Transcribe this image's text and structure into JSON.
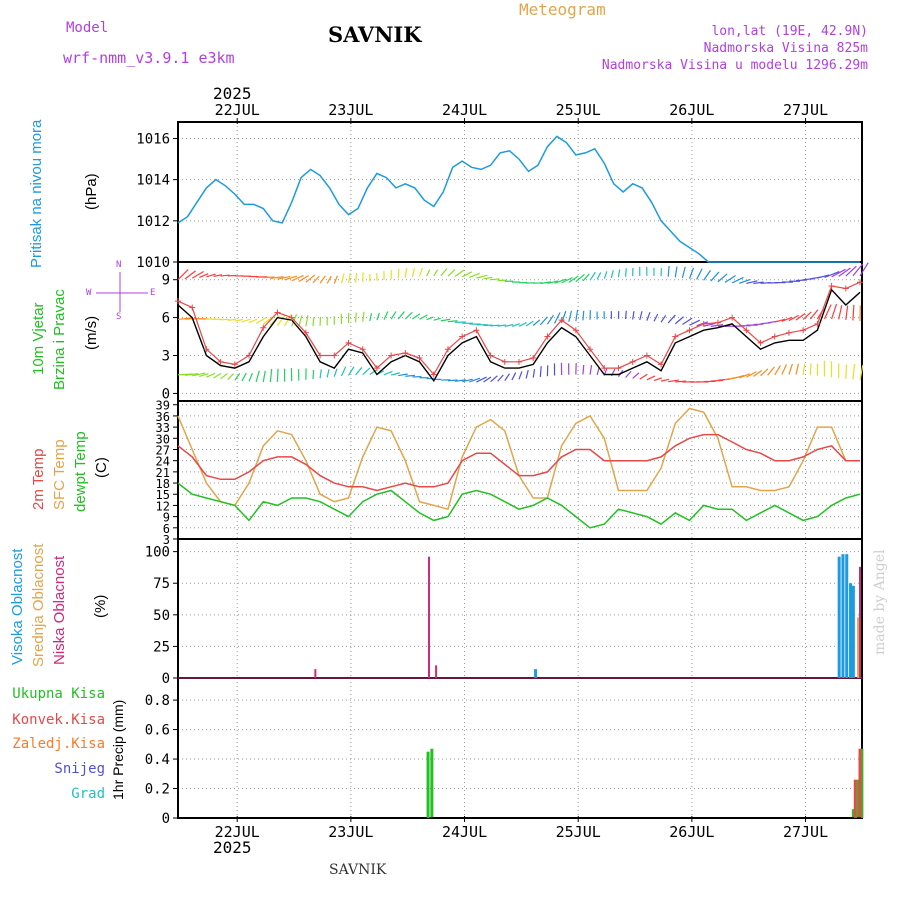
{
  "header": {
    "model_label": "Model",
    "model_name": "wrf-nmm_v3.9.1  e3km",
    "station": "SAVNIK",
    "product": "Meteogram",
    "location": "lon,lat (19E, 42.9N)",
    "elevation": "Nadmorska Visina 825m",
    "model_elevation": "Nadmorska Visina u modelu 1296.29m",
    "year_top": "2025",
    "year_bottom": "2025",
    "footer_station": "SAVNIK",
    "watermark": "made by Angel"
  },
  "colors": {
    "pressure": "#1e9be0",
    "temp": "#e84848",
    "sfc": "#e3a54a",
    "dew": "#22c022",
    "wind_black": "#000000",
    "high_cloud": "#1e9be0",
    "mid_cloud": "#e3a54a",
    "low_cloud": "#d0287a",
    "rain_total": "#22c022",
    "rain_conv": "#e84848",
    "rain_strat": "#ff7a2a",
    "snow": "#5050e0",
    "hail": "#22c0c0",
    "purple": "#b040e0"
  },
  "chart_data": [
    {
      "type": "line",
      "name": "pressure",
      "title": "Pritisak na nivou mora",
      "ylabel": "(hPa)",
      "ylim": [
        1010,
        1016.8
      ],
      "yticks": [
        1010,
        1012,
        1014,
        1016
      ],
      "x_days": [
        "22JUL",
        "23JUL",
        "24JUL",
        "25JUL",
        "26JUL",
        "27JUL"
      ],
      "x_range_hours": [
        0,
        144
      ],
      "series": [
        {
          "name": "Pressure MSL",
          "x": [
            0,
            2,
            4,
            6,
            8,
            10,
            12,
            14,
            16,
            18,
            20,
            22,
            24,
            26,
            28,
            30,
            32,
            34,
            36,
            38,
            40,
            42,
            44,
            46,
            48,
            50,
            52,
            54,
            56,
            58,
            60,
            62,
            64,
            66,
            68,
            70,
            72,
            74,
            76,
            78,
            80,
            82,
            84,
            86,
            88,
            90,
            92,
            94,
            96,
            98,
            100,
            102,
            104,
            106,
            108,
            110,
            112,
            114,
            116,
            118,
            120,
            122,
            124,
            126,
            128,
            130,
            132,
            134,
            136,
            138,
            140,
            142,
            144
          ],
          "values": [
            1011.9,
            1012.2,
            1012.9,
            1013.6,
            1014.0,
            1013.7,
            1013.3,
            1012.8,
            1012.8,
            1012.6,
            1012.0,
            1011.9,
            1012.9,
            1014.1,
            1014.5,
            1014.2,
            1013.6,
            1012.8,
            1012.3,
            1012.6,
            1013.6,
            1014.3,
            1014.1,
            1013.6,
            1013.8,
            1013.6,
            1013.0,
            1012.7,
            1013.4,
            1014.6,
            1014.9,
            1014.6,
            1014.5,
            1014.7,
            1015.3,
            1015.4,
            1015.0,
            1014.4,
            1014.7,
            1015.6,
            1016.1,
            1015.8,
            1015.2,
            1015.3,
            1015.5,
            1014.8,
            1013.8,
            1013.4,
            1013.8,
            1013.6,
            1012.9,
            1012.0,
            1011.5,
            1011.0,
            1010.7,
            1010.4,
            1010.0,
            1010.0,
            1010.0,
            1010.0,
            1010.0,
            1010.0,
            1010.0,
            1010.0,
            1010.0,
            1010.0,
            1010.0,
            1010.0,
            1010.0,
            1010.0,
            1010.0,
            1010.0,
            1010.0
          ]
        }
      ]
    },
    {
      "type": "line",
      "name": "wind",
      "title": "10m Vjetar",
      "title2": "Brzina i Pravac",
      "ylabel": "(m/s)",
      "ylim": [
        -0.6,
        10.4
      ],
      "yticks": [
        0,
        3,
        6,
        9
      ],
      "compass": {
        "n": "N",
        "s": "S",
        "e": "E",
        "w": "W"
      },
      "series": [
        {
          "name": "Wind speed",
          "x": [
            0,
            3,
            6,
            9,
            12,
            15,
            18,
            21,
            24,
            27,
            30,
            33,
            36,
            39,
            42,
            45,
            48,
            51,
            54,
            57,
            60,
            63,
            66,
            69,
            72,
            75,
            78,
            81,
            84,
            87,
            90,
            93,
            96,
            99,
            102,
            105,
            108,
            111,
            114,
            117,
            120,
            123,
            126,
            129,
            132,
            135,
            138,
            141,
            144
          ],
          "values": [
            7.0,
            6.0,
            3.0,
            2.2,
            2.0,
            2.5,
            4.5,
            6.0,
            5.8,
            4.5,
            2.5,
            2.0,
            3.5,
            3.2,
            1.5,
            2.5,
            3.0,
            2.5,
            1.0,
            3.0,
            4.0,
            4.5,
            2.5,
            2.0,
            2.0,
            2.3,
            4.0,
            5.2,
            4.5,
            3.0,
            1.5,
            1.5,
            2.0,
            2.5,
            1.8,
            4.0,
            4.5,
            5.0,
            5.2,
            5.5,
            4.5,
            3.5,
            4.0,
            4.2,
            4.2,
            5.0,
            8.2,
            7.0,
            8.0
          ]
        },
        {
          "name": "Wind gust",
          "x": [
            0,
            3,
            6,
            9,
            12,
            15,
            18,
            21,
            24,
            27,
            30,
            33,
            36,
            39,
            42,
            45,
            48,
            51,
            54,
            57,
            60,
            63,
            66,
            69,
            72,
            75,
            78,
            81,
            84,
            87,
            90,
            93,
            96,
            99,
            102,
            105,
            108,
            111,
            114,
            117,
            120,
            123,
            126,
            129,
            132,
            135,
            138,
            141,
            144
          ],
          "values": [
            7.3,
            6.8,
            3.5,
            2.5,
            2.3,
            3.0,
            5.2,
            6.4,
            6.0,
            4.8,
            3.0,
            3.0,
            4.0,
            3.5,
            2.0,
            3.0,
            3.2,
            2.8,
            1.5,
            3.5,
            4.5,
            5.0,
            3.0,
            2.5,
            2.5,
            2.8,
            4.5,
            5.8,
            5.0,
            3.5,
            2.0,
            2.0,
            2.5,
            3.0,
            2.3,
            4.5,
            5.0,
            5.5,
            5.6,
            6.0,
            5.0,
            4.0,
            4.5,
            4.8,
            5.0,
            5.5,
            8.5,
            8.3,
            8.8
          ]
        }
      ]
    },
    {
      "type": "line",
      "name": "temperature",
      "title": "2m Temp",
      "title2": "SFC Temp",
      "title3": "dewpt Temp",
      "ylabel": "(C)",
      "ylim": [
        3,
        40
      ],
      "yticks": [
        3,
        6,
        9,
        12,
        15,
        18,
        21,
        24,
        27,
        30,
        33,
        36,
        39
      ],
      "series": [
        {
          "name": "2m Temp",
          "x": [
            0,
            3,
            6,
            9,
            12,
            15,
            18,
            21,
            24,
            27,
            30,
            33,
            36,
            39,
            42,
            45,
            48,
            51,
            54,
            57,
            60,
            63,
            66,
            69,
            72,
            75,
            78,
            81,
            84,
            87,
            90,
            93,
            96,
            99,
            102,
            105,
            108,
            111,
            114,
            117,
            120,
            123,
            126,
            129,
            132,
            135,
            138,
            141,
            144
          ],
          "values": [
            28,
            25,
            20,
            19,
            19,
            21,
            24,
            25,
            25,
            23,
            20,
            18,
            17,
            17,
            16,
            17,
            18,
            17,
            17,
            18,
            24,
            26,
            26,
            23,
            20,
            20,
            21,
            25,
            27,
            27,
            24,
            24,
            24,
            24,
            25,
            28,
            30,
            31,
            31,
            29,
            27,
            26,
            24,
            24,
            25,
            27,
            28,
            24,
            24
          ]
        },
        {
          "name": "SFC Temp",
          "x": [
            0,
            3,
            6,
            9,
            12,
            15,
            18,
            21,
            24,
            27,
            30,
            33,
            36,
            39,
            42,
            45,
            48,
            51,
            54,
            57,
            60,
            63,
            66,
            69,
            72,
            75,
            78,
            81,
            84,
            87,
            90,
            93,
            96,
            99,
            102,
            105,
            108,
            111,
            114,
            117,
            120,
            123,
            126,
            129,
            132,
            135,
            138,
            141,
            144
          ],
          "values": [
            36,
            27,
            18,
            13,
            12,
            18,
            28,
            32,
            31,
            24,
            15,
            13,
            14,
            25,
            33,
            32,
            24,
            13,
            12,
            11,
            25,
            33,
            35,
            32,
            20,
            14,
            14,
            28,
            34,
            36,
            30,
            16,
            16,
            16,
            22,
            34,
            38,
            37,
            30,
            17,
            17,
            16,
            16,
            17,
            24,
            33,
            33,
            24,
            24
          ]
        },
        {
          "name": "Dewpoint",
          "x": [
            0,
            3,
            6,
            9,
            12,
            15,
            18,
            21,
            24,
            27,
            30,
            33,
            36,
            39,
            42,
            45,
            48,
            51,
            54,
            57,
            60,
            63,
            66,
            69,
            72,
            75,
            78,
            81,
            84,
            87,
            90,
            93,
            96,
            99,
            102,
            105,
            108,
            111,
            114,
            117,
            120,
            123,
            126,
            129,
            132,
            135,
            138,
            141,
            144
          ],
          "values": [
            18,
            15,
            14,
            13,
            12,
            8,
            13,
            12,
            14,
            14,
            13,
            11,
            9,
            13,
            15,
            16,
            13,
            10,
            8,
            9,
            15,
            16,
            15,
            13,
            11,
            12,
            14,
            12,
            9,
            6,
            7,
            11,
            10,
            9,
            7,
            10,
            8,
            12,
            11,
            11,
            8,
            10,
            12,
            10,
            8,
            9,
            12,
            14,
            15
          ]
        }
      ]
    },
    {
      "type": "bar",
      "name": "clouds",
      "title": "Visoka Oblacnost",
      "title2": "Srednja Oblacnost",
      "title3": "Niska Oblacnost",
      "ylabel": "(%)",
      "ylim": [
        0,
        110
      ],
      "yticks": [
        0,
        25,
        50,
        75,
        100
      ],
      "series": [
        {
          "name": "Low cloud",
          "x": [
            29,
            53,
            54.5,
            144
          ],
          "values": [
            7,
            96,
            10,
            88
          ]
        },
        {
          "name": "Mid cloud",
          "x": [
            143.6
          ],
          "values": [
            48
          ]
        },
        {
          "name": "High cloud",
          "x": [
            75.5,
            139.6,
            140.4,
            141.2,
            142.0,
            142.6
          ],
          "values": [
            7,
            96,
            98,
            98,
            75,
            73
          ]
        }
      ]
    },
    {
      "type": "bar",
      "name": "precipitation",
      "title": "Ukupna Kisa",
      "title2": "Konvek.Kisa",
      "title3": "Zaledj.Kisa",
      "title4": "Snijeg",
      "title5": "Grad",
      "ylabel": "1hr Precip (mm)",
      "ylim": [
        0,
        0.95
      ],
      "yticks": [
        0,
        0.2,
        0.4,
        0.6,
        0.8
      ],
      "yticklabels": [
        "0",
        "0.2",
        "0.4",
        "0.6",
        "0.8"
      ],
      "series": [
        {
          "name": "Ukupna Kisa",
          "x": [
            52.8,
            53.6,
            142.6,
            143.6,
            144.4
          ],
          "values": [
            0.45,
            0.47,
            0.06,
            0.26,
            0.47
          ]
        },
        {
          "name": "Konvek.Kisa",
          "x": [
            143.0,
            144.0
          ],
          "values": [
            0.26,
            0.47
          ]
        }
      ]
    }
  ]
}
